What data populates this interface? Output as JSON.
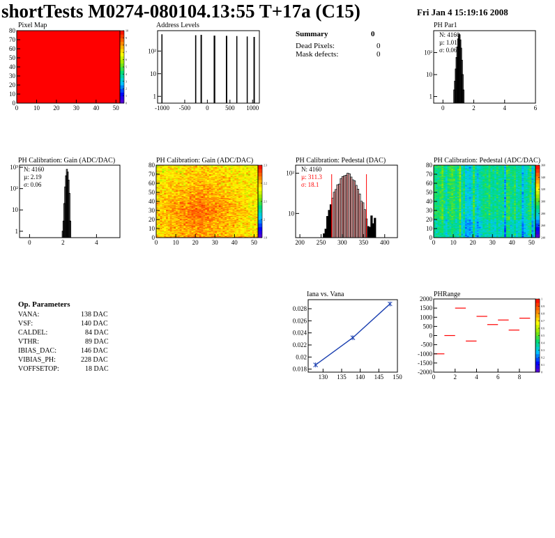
{
  "header": {
    "title": "shortTests M0274-080104.13:55 T+17a (C15)",
    "date": "Fri Jan  4 15:19:16 2008"
  },
  "summary": {
    "title": "Summary",
    "title_value": "0",
    "rows": [
      {
        "label": "Dead Pixels:",
        "value": "0"
      },
      {
        "label": "Mask defects:",
        "value": "0"
      }
    ]
  },
  "op_params": {
    "title": "Op. Parameters",
    "rows": [
      {
        "name": "VANA:",
        "value": "138 DAC"
      },
      {
        "name": "VSF:",
        "value": "140 DAC"
      },
      {
        "name": "CALDEL:",
        "value": "84 DAC"
      },
      {
        "name": "VTHR:",
        "value": "89 DAC"
      },
      {
        "name": "IBIAS_DAC:",
        "value": "146 DAC"
      },
      {
        "name": "VIBIAS_PH:",
        "value": "228 DAC"
      },
      {
        "name": "VOFFSETOP:",
        "value": "18 DAC"
      }
    ]
  },
  "colors": {
    "red": "#ff0000",
    "darkred": "#cc0000",
    "blue": "#1a3fb0"
  },
  "chart_data": [
    {
      "id": "pixel_map",
      "type": "heatmap",
      "title": "Pixel Map",
      "xlim": [
        0,
        52
      ],
      "ylim": [
        0,
        80
      ],
      "xticks": [
        "0",
        "10",
        "20",
        "30",
        "40",
        "50"
      ],
      "yticks": [
        "0",
        "10",
        "20",
        "30",
        "40",
        "50",
        "60",
        "70",
        "80"
      ],
      "zlim": [
        0,
        10
      ],
      "zticks": [
        "0",
        "1",
        "2",
        "3",
        "4",
        "5",
        "6",
        "7",
        "8",
        "9",
        "10"
      ],
      "fill_value": 10
    },
    {
      "id": "address_levels",
      "type": "bar",
      "title": "Address Levels",
      "ylog": true,
      "xlim": [
        -1100,
        1150
      ],
      "xticks": [
        "-1000",
        "-500",
        "0",
        "500",
        "1000"
      ],
      "yticks": [
        "1",
        "10",
        "10²"
      ],
      "peaks": [
        {
          "x": [
            -1015,
            -1000
          ],
          "h": 550
        },
        {
          "x": [
            -270,
            -245
          ],
          "h": 500
        },
        {
          "x": [
            -150,
            -120
          ],
          "h": 520
        },
        {
          "x": [
            140,
            175
          ],
          "h": 480
        },
        {
          "x": [
            410,
            440
          ],
          "h": 470
        },
        {
          "x": [
            640,
            660
          ],
          "h": 460
        },
        {
          "x": [
            870,
            890
          ],
          "h": 440
        },
        {
          "x": [
            1020,
            1050
          ],
          "h": 420
        }
      ]
    },
    {
      "id": "ph_par1",
      "type": "bar",
      "title": "PH Par1",
      "ylog": true,
      "xlim": [
        -0.6,
        6
      ],
      "xticks": [
        "0",
        "2",
        "4",
        "6"
      ],
      "yticks": [
        "1",
        "10",
        "10²"
      ],
      "stats": {
        "N": "N: 4160",
        "mu": "µ: 1.01",
        "sigma": "σ: 0.06"
      },
      "bins": [
        [
          0.7,
          2
        ],
        [
          0.75,
          5
        ],
        [
          0.8,
          18
        ],
        [
          0.85,
          60
        ],
        [
          0.9,
          180
        ],
        [
          0.95,
          420
        ],
        [
          1.0,
          700
        ],
        [
          1.05,
          650
        ],
        [
          1.1,
          380
        ],
        [
          1.15,
          160
        ],
        [
          1.2,
          45
        ],
        [
          1.25,
          10
        ],
        [
          1.3,
          2
        ]
      ]
    },
    {
      "id": "ph_gain_hist",
      "type": "bar",
      "title": "PH Calibration: Gain (ADC/DAC)",
      "ylog": true,
      "xlim": [
        -0.6,
        5.4
      ],
      "xticks": [
        "0",
        "2",
        "4"
      ],
      "yticks": [
        "1",
        "10",
        "10²",
        "10³"
      ],
      "stats": {
        "N": "N: 4160",
        "mu": "µ: 2.19",
        "sigma": "σ: 0.06"
      },
      "bins": [
        [
          1.95,
          1
        ],
        [
          2.0,
          3
        ],
        [
          2.05,
          20
        ],
        [
          2.1,
          120
        ],
        [
          2.15,
          400
        ],
        [
          2.2,
          800
        ],
        [
          2.25,
          600
        ],
        [
          2.3,
          250
        ],
        [
          2.35,
          60
        ],
        [
          2.4,
          3
        ]
      ]
    },
    {
      "id": "ph_gain_map",
      "type": "heatmap",
      "title": "PH Calibration: Gain (ADC/DAC)",
      "xlim": [
        0,
        52
      ],
      "ylim": [
        0,
        80
      ],
      "xticks": [
        "0",
        "10",
        "20",
        "30",
        "40",
        "50"
      ],
      "yticks": [
        "0",
        "10",
        "20",
        "30",
        "40",
        "50",
        "60",
        "70",
        "80"
      ],
      "zlim": [
        1.85,
        2.35
      ],
      "zticks": [
        "1.9",
        "2",
        "2.1",
        "2.2",
        "2.3"
      ]
    },
    {
      "id": "ph_pedestal_hist",
      "type": "bar",
      "title": "PH Calibration: Pedestal (DAC)",
      "ylog": true,
      "xlim": [
        190,
        430
      ],
      "xticks": [
        "200",
        "250",
        "300",
        "350",
        "400"
      ],
      "yticks": [
        "10",
        "10²"
      ],
      "stats": {
        "N": "N: 4160",
        "mu": "µ: 311.3",
        "sigma": "σ: 18.1"
      },
      "mean": 311.3,
      "sigma": 18.1,
      "peak": 90,
      "range": [
        255,
        378
      ],
      "cuts": [
        275,
        357
      ]
    },
    {
      "id": "ph_pedestal_map",
      "type": "heatmap",
      "title": "PH Calibration: Pedestal (ADC/DAC)",
      "xlim": [
        0,
        52
      ],
      "ylim": [
        0,
        80
      ],
      "xticks": [
        "0",
        "10",
        "20",
        "30",
        "40",
        "50"
      ],
      "yticks": [
        "0",
        "10",
        "20",
        "30",
        "40",
        "50",
        "60",
        "70",
        "80"
      ],
      "zlim": [
        230,
        360
      ],
      "zticks": [
        "240",
        "260",
        "280",
        "300",
        "320",
        "340",
        "360"
      ]
    },
    {
      "id": "iana_vs_vana",
      "type": "line",
      "title": "Iana vs. Vana",
      "xlim": [
        126,
        150
      ],
      "ylim": [
        0.0175,
        0.0295
      ],
      "xticks": [
        "130",
        "135",
        "140",
        "145",
        "150"
      ],
      "yticks": [
        "0.018",
        "0.02",
        "0.022",
        "0.024",
        "0.026",
        "0.028"
      ],
      "x": [
        128,
        138,
        148
      ],
      "y": [
        0.0187,
        0.0232,
        0.0288
      ]
    },
    {
      "id": "ph_range",
      "type": "scatter",
      "title": "PHRange",
      "xlim": [
        0,
        9.5
      ],
      "ylim": [
        -2000,
        2000
      ],
      "xticks": [
        "0",
        "2",
        "4",
        "6",
        "8"
      ],
      "yticks": [
        "2000",
        "1500",
        "1000",
        "500",
        "0",
        "-500",
        "-1000",
        "-1500",
        "-2000"
      ],
      "zticks": [
        "0",
        "0.1",
        "0.2",
        "0.3",
        "0.4",
        "0.5",
        "0.6",
        "0.7",
        "0.8",
        "0.9",
        "1"
      ],
      "x": [
        0.5,
        1.5,
        2.5,
        3.5,
        4.5,
        5.5,
        6.5,
        7.5,
        8.5
      ],
      "y": [
        -1000,
        0,
        1500,
        -300,
        1050,
        600,
        850,
        300,
        950
      ]
    }
  ]
}
